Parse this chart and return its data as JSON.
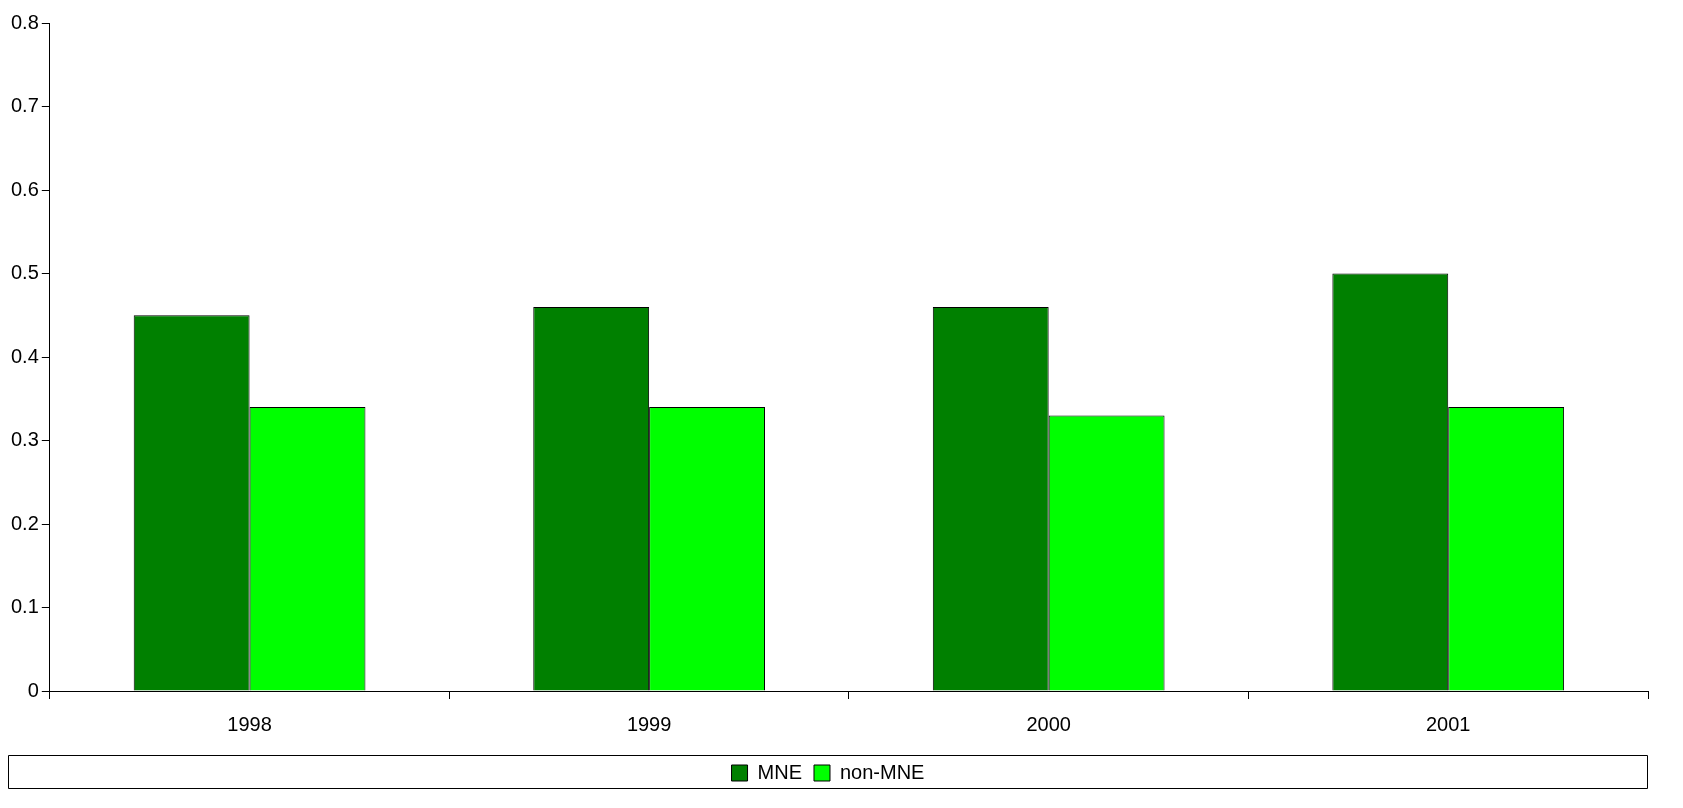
{
  "chart_data": {
    "type": "bar",
    "categories": [
      "1998",
      "1999",
      "2000",
      "2001"
    ],
    "series": [
      {
        "name": "MNE",
        "color": "#008000",
        "values": [
          0.45,
          0.46,
          0.46,
          0.5
        ]
      },
      {
        "name": "non-MNE",
        "color": "#00ff00",
        "values": [
          0.34,
          0.34,
          0.33,
          0.34
        ]
      }
    ],
    "ylim": [
      0,
      0.8
    ],
    "yticks": [
      0,
      0.1,
      0.2,
      0.3,
      0.4,
      0.5,
      0.6,
      0.7,
      0.8
    ],
    "grid": false,
    "legend": "bottom"
  }
}
